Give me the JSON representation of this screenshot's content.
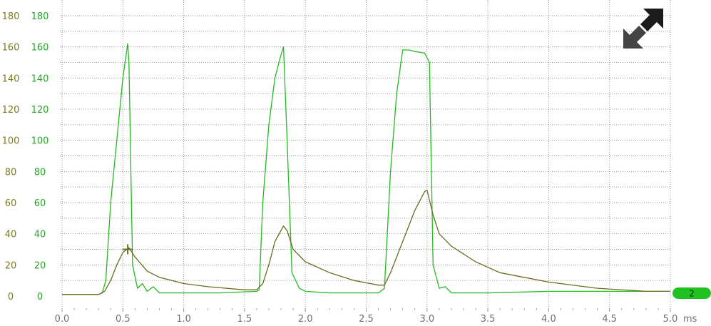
{
  "chart_data": {
    "type": "line",
    "title": "",
    "xlabel": "ms",
    "x_ticks": [
      "0.0",
      "0.5",
      "1.0",
      "1.5",
      "2.0",
      "2.5",
      "3.0",
      "3.5",
      "4.0",
      "4.5",
      "5.0"
    ],
    "xlim": [
      0,
      5
    ],
    "y_ticks_left": [
      "0",
      "20",
      "40",
      "60",
      "80",
      "100",
      "120",
      "140",
      "160",
      "180"
    ],
    "y_ticks_right": [
      "0",
      "20",
      "40",
      "60",
      "80",
      "100",
      "120",
      "140",
      "160",
      "180"
    ],
    "ylim": [
      0,
      180
    ],
    "grid": true,
    "series": [
      {
        "color": "#22bb22",
        "points": [
          [
            0.0,
            1
          ],
          [
            0.3,
            1
          ],
          [
            0.33,
            2
          ],
          [
            0.36,
            10
          ],
          [
            0.4,
            60
          ],
          [
            0.45,
            100
          ],
          [
            0.5,
            140
          ],
          [
            0.54,
            162
          ],
          [
            0.55,
            150
          ],
          [
            0.58,
            20
          ],
          [
            0.62,
            5
          ],
          [
            0.66,
            8
          ],
          [
            0.7,
            3
          ],
          [
            0.75,
            6
          ],
          [
            0.8,
            2
          ],
          [
            1.0,
            2
          ],
          [
            1.3,
            2
          ],
          [
            1.6,
            3
          ],
          [
            1.62,
            4
          ],
          [
            1.65,
            60
          ],
          [
            1.7,
            110
          ],
          [
            1.75,
            140
          ],
          [
            1.8,
            155
          ],
          [
            1.82,
            160
          ],
          [
            1.85,
            100
          ],
          [
            1.89,
            15
          ],
          [
            1.95,
            5
          ],
          [
            2.0,
            3
          ],
          [
            2.2,
            2
          ],
          [
            2.6,
            2
          ],
          [
            2.65,
            5
          ],
          [
            2.7,
            80
          ],
          [
            2.75,
            130
          ],
          [
            2.8,
            158
          ],
          [
            2.85,
            158
          ],
          [
            2.9,
            157
          ],
          [
            2.98,
            156
          ],
          [
            3.02,
            150
          ],
          [
            3.05,
            20
          ],
          [
            3.1,
            5
          ],
          [
            3.15,
            6
          ],
          [
            3.2,
            2
          ],
          [
            3.5,
            2
          ],
          [
            4.0,
            3
          ],
          [
            4.5,
            3
          ],
          [
            5.0,
            3
          ]
        ]
      },
      {
        "color": "#6b6b22",
        "points": [
          [
            0.0,
            1
          ],
          [
            0.3,
            1
          ],
          [
            0.35,
            3
          ],
          [
            0.4,
            10
          ],
          [
            0.45,
            20
          ],
          [
            0.5,
            28
          ],
          [
            0.55,
            31
          ],
          [
            0.6,
            25
          ],
          [
            0.7,
            16
          ],
          [
            0.8,
            12
          ],
          [
            1.0,
            8
          ],
          [
            1.2,
            6
          ],
          [
            1.5,
            4
          ],
          [
            1.6,
            4
          ],
          [
            1.65,
            8
          ],
          [
            1.7,
            20
          ],
          [
            1.75,
            35
          ],
          [
            1.82,
            45
          ],
          [
            1.85,
            42
          ],
          [
            1.9,
            30
          ],
          [
            2.0,
            22
          ],
          [
            2.2,
            15
          ],
          [
            2.4,
            10
          ],
          [
            2.6,
            7
          ],
          [
            2.65,
            7
          ],
          [
            2.7,
            15
          ],
          [
            2.8,
            35
          ],
          [
            2.9,
            55
          ],
          [
            2.98,
            67
          ],
          [
            3.0,
            68
          ],
          [
            3.05,
            52
          ],
          [
            3.1,
            40
          ],
          [
            3.2,
            32
          ],
          [
            3.4,
            22
          ],
          [
            3.6,
            15
          ],
          [
            4.0,
            9
          ],
          [
            4.4,
            5
          ],
          [
            4.8,
            3
          ],
          [
            5.0,
            3
          ]
        ]
      }
    ],
    "cursor_point": {
      "x": 0.54,
      "y": 30
    },
    "channel_marker": "2"
  }
}
